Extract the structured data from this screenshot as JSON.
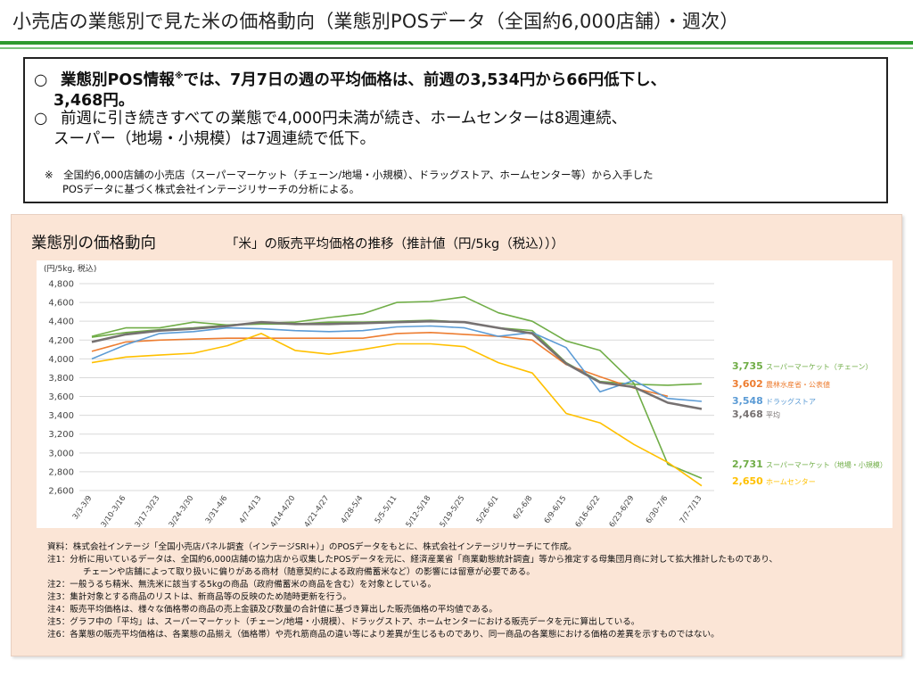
{
  "page": {
    "title": "小売店の業態別で見た米の価格動向（業態別POSデータ（全国約6,000店舗）・週次）"
  },
  "summary": {
    "bullet_mark": "○",
    "bullet1_line1_a": "業態別POS情報",
    "bullet1_sup": "※",
    "bullet1_line1_b": "では、7月7日の週の平均価格は、前週の3,534円から66円低下し、",
    "bullet1_line2": "3,468円。",
    "bullet2_line1": "前週に引き続きすべての業態で4,000円未満が続き、ホームセンターは8週連続、",
    "bullet2_line2": "スーパー（地場・小規模）は7週連続で低下。",
    "footnote_line1": "※　全国約6,000店舗の小売店（スーパーマーケット（チェーン/地場・小規模）、ドラッグストア、ホームセンター等）から入手した",
    "footnote_line2": "POSデータに基づく株式会社インテージリサーチの分析による。"
  },
  "panel": {
    "title": "業態別の価格動向",
    "subtitle": "「米」の販売平均価格の推移（推計値（円/5kg（税込）））"
  },
  "chart_data": {
    "type": "line",
    "unit_label": "(円/5kg, 税込)",
    "ylim": [
      2600,
      4800
    ],
    "y_ticks": [
      "2,600",
      "2,800",
      "3,000",
      "3,200",
      "3,400",
      "3,600",
      "3,800",
      "4,000",
      "4,200",
      "4,400",
      "4,600",
      "4,800"
    ],
    "y_tick_values": [
      2600,
      2800,
      3000,
      3200,
      3400,
      3600,
      3800,
      4000,
      4200,
      4400,
      4600,
      4800
    ],
    "grid": true,
    "x": [
      "3/3-3/9",
      "3/10-3/16",
      "3/17-3/23",
      "3/24-3/30",
      "3/31-4/6",
      "4/7-4/13",
      "4/14-4/20",
      "4/21-4/27",
      "4/28-5/4",
      "5/5-5/11",
      "5/12-5/18",
      "5/19-5/25",
      "5/26-6/1",
      "6/2-6/8",
      "6/9-6/15",
      "6/16-6/22",
      "6/23-6/29",
      "6/30-7/6",
      "7/7-7/13"
    ],
    "series": [
      {
        "name": "スーパーマーケット（チェーン）",
        "color": "#70ad47",
        "end_label": "3,735",
        "values": [
          4240,
          4330,
          4330,
          4390,
          4360,
          4370,
          4370,
          4390,
          4390,
          4400,
          4410,
          4390,
          4330,
          4300,
          3960,
          3760,
          3730,
          3720,
          3735
        ]
      },
      {
        "name": "スーパーマーケット（地場・小規模）",
        "color": "#70ad47",
        "end_label": "2,731",
        "values": [
          4230,
          4280,
          4310,
          4330,
          4360,
          4380,
          4390,
          4440,
          4480,
          4600,
          4610,
          4660,
          4490,
          4400,
          4190,
          4090,
          3740,
          2880,
          2731
        ]
      },
      {
        "name": "農林水産省・公表値",
        "color": "#ed7d31",
        "end_label": "3,602",
        "values": [
          4080,
          4180,
          4200,
          4210,
          4220,
          4220,
          4220,
          4220,
          4220,
          4270,
          4280,
          4260,
          4240,
          4200,
          3940,
          3810,
          3690,
          3602,
          null
        ]
      },
      {
        "name": "ドラッグストア",
        "color": "#5b9bd5",
        "end_label": "3,548",
        "values": [
          4000,
          4150,
          4270,
          4290,
          4330,
          4320,
          4300,
          4290,
          4300,
          4340,
          4350,
          4330,
          4240,
          4280,
          4120,
          3650,
          3770,
          3580,
          3548
        ]
      },
      {
        "name": "平均",
        "color": "#767171",
        "end_label": "3,468",
        "values": [
          4180,
          4260,
          4300,
          4320,
          4350,
          4390,
          4370,
          4370,
          4380,
          4390,
          4400,
          4390,
          4330,
          4270,
          3950,
          3750,
          3700,
          3534,
          3468
        ]
      },
      {
        "name": "ホームセンター",
        "color": "#ffc000",
        "end_label": "2,650",
        "values": [
          3960,
          4020,
          4040,
          4060,
          4140,
          4270,
          4090,
          4050,
          4100,
          4160,
          4160,
          4130,
          3960,
          3850,
          3420,
          3320,
          3090,
          2900,
          2650
        ]
      }
    ]
  },
  "notes": {
    "line1": "資料：株式会社インテージ「全国小売店パネル調査（インテージSRI+）」のPOSデータをもとに、株式会社インテージリサーチにて作成。",
    "line2": "注1：分析に用いているデータは、全国約6,000店舗の協力店から収集したPOSデータを元に、経済産業省「商業動態統計調査」等から推定する母集団月商に対して拡大推計したものであり、",
    "line3": "チェーンや店舗によって取り扱いに偏りがある商材（随意契約による政府備蓄米など）の影響には留意が必要である。",
    "line4": "注2：一般うるち精米、無洗米に該当する5kgの商品（政府備蓄米の商品を含む）を対象としている。",
    "line5": "注3：集計対象とする商品のリストは、新商品等の反映のため随時更新を行う。",
    "line6": "注4：販売平均価格は、様々な価格帯の商品の売上金額及び数量の合計値に基づき算出した販売価格の平均値である。",
    "line7": "注5：グラフ中の「平均」は、スーパーマーケット（チェーン/地場・小規模）、ドラッグストア、ホームセンターにおける販売データを元に算出している。",
    "line8": "注6：各業態の販売平均価格は、各業態の品揃え（価格帯）や売れ筋商品の違い等により差異が生じるものであり、同一商品の各業態における価格の差異を示すものではない。"
  }
}
